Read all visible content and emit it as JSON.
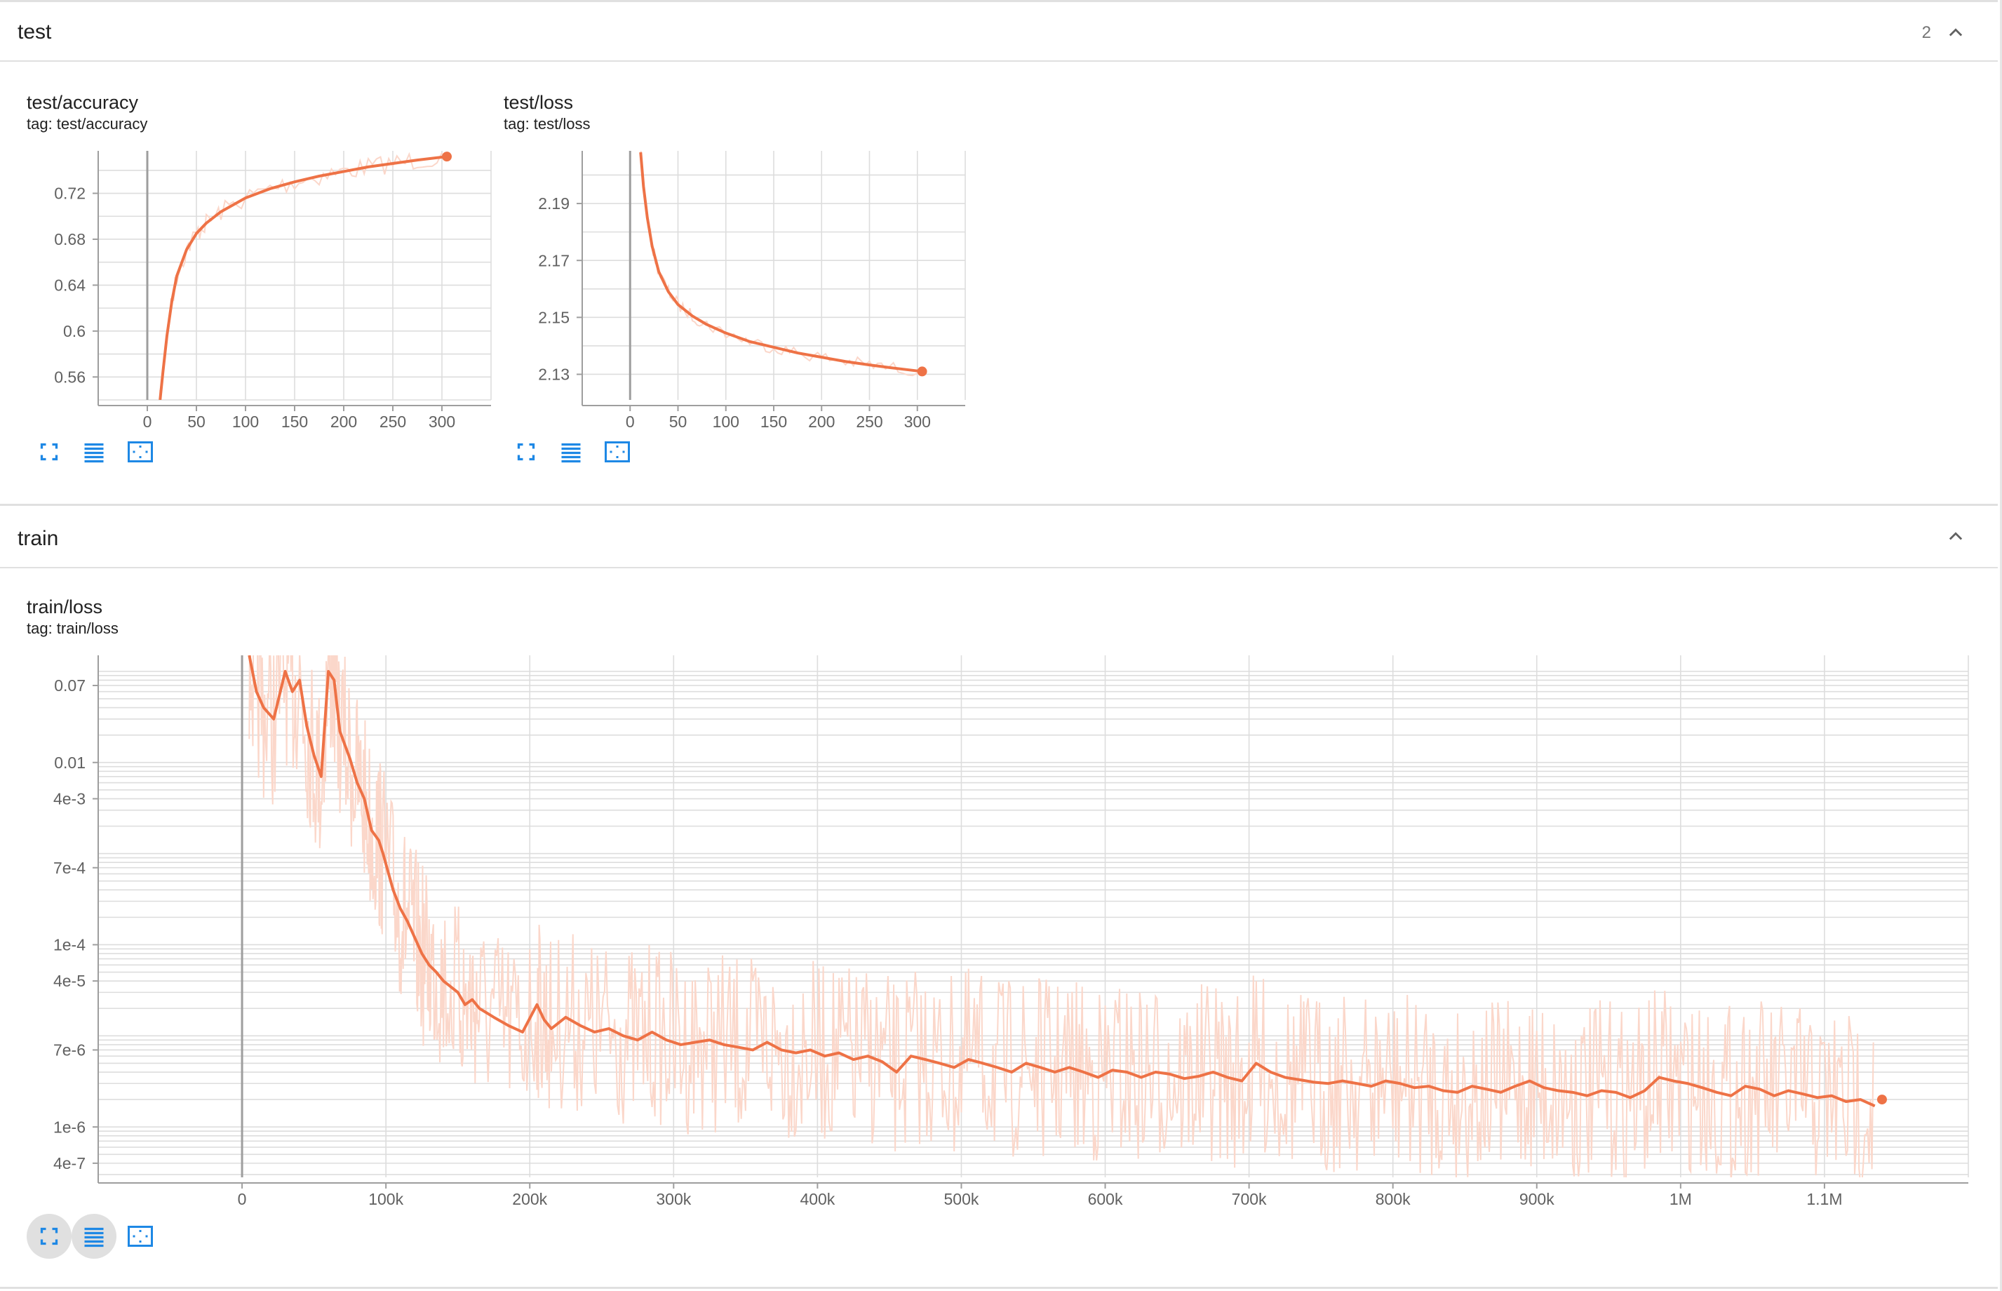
{
  "sections": {
    "test": {
      "title": "test",
      "count": "2"
    },
    "train": {
      "title": "train"
    }
  },
  "cards": {
    "acc": {
      "title": "test/accuracy",
      "tag": "tag: test/accuracy"
    },
    "loss": {
      "title": "test/loss",
      "tag": "tag: test/loss"
    },
    "train": {
      "title": "train/loss",
      "tag": "tag: train/loss"
    }
  },
  "icons": {
    "fit": "fullscreen-icon",
    "log": "toggle-log-scale-icon",
    "zoom": "fit-domain-icon",
    "collapse": "chevron-up-icon"
  },
  "colors": {
    "series": "#ee7246",
    "series_faint": "#fbd7ca",
    "accent": "#1e88e5"
  },
  "chart_data": [
    {
      "type": "line",
      "title": "test/accuracy",
      "xlim": [
        -50,
        350
      ],
      "ylim": [
        0.54,
        0.757
      ],
      "xticks": [
        0,
        50,
        100,
        150,
        200,
        250,
        300
      ],
      "yticks": [
        0.56,
        0.6,
        0.64,
        0.68,
        0.72
      ],
      "ytick_labels": [
        "0.56",
        "0.6",
        "0.64",
        "0.68",
        "0.72"
      ],
      "grid": true,
      "series": [
        {
          "x": [
            13,
            16,
            20,
            25,
            30,
            40,
            50,
            60,
            75,
            100,
            125,
            150,
            175,
            200,
            225,
            250,
            275,
            305
          ],
          "y": [
            0.54,
            0.565,
            0.596,
            0.626,
            0.648,
            0.671,
            0.685,
            0.694,
            0.704,
            0.716,
            0.724,
            0.73,
            0.735,
            0.739,
            0.743,
            0.746,
            0.749,
            0.752
          ]
        }
      ]
    },
    {
      "type": "line",
      "title": "test/loss",
      "xlim": [
        -50,
        350
      ],
      "ylim": [
        2.121,
        2.2085
      ],
      "xticks": [
        0,
        50,
        100,
        150,
        200,
        250,
        300
      ],
      "yticks": [
        2.13,
        2.15,
        2.17,
        2.19
      ],
      "ytick_labels": [
        "2.13",
        "2.15",
        "2.17",
        "2.19"
      ],
      "grid": true,
      "series": [
        {
          "x": [
            11,
            14,
            18,
            23,
            30,
            40,
            50,
            65,
            80,
            100,
            125,
            150,
            175,
            200,
            225,
            250,
            275,
            305
          ],
          "y": [
            2.208,
            2.196,
            2.185,
            2.175,
            2.166,
            2.159,
            2.1545,
            2.1505,
            2.1475,
            2.1445,
            2.1415,
            2.1395,
            2.1375,
            2.136,
            2.1345,
            2.1333,
            2.1322,
            2.131
          ]
        }
      ]
    },
    {
      "type": "line",
      "title": "train/loss",
      "xlim": [
        -100000,
        1200000
      ],
      "ylim": [
        2.8e-07,
        0.15
      ],
      "yscale": "log",
      "xticks": [
        0,
        100000,
        200000,
        300000,
        400000,
        500000,
        600000,
        700000,
        800000,
        900000,
        1000000,
        1100000
      ],
      "xtick_labels": [
        "0",
        "100k",
        "200k",
        "300k",
        "400k",
        "500k",
        "600k",
        "700k",
        "800k",
        "900k",
        "1M",
        "1.1M"
      ],
      "yticks": [
        4e-07,
        1e-06,
        7e-06,
        4e-05,
        0.0001,
        0.0007,
        0.004,
        0.01,
        0.07
      ],
      "ytick_labels": [
        "4e-7",
        "1e-6",
        "7e-6",
        "4e-5",
        "1e-4",
        "7e-4",
        "4e-3",
        "0.01",
        "0.07"
      ],
      "grid": true,
      "series": [
        {
          "x": [
            5000,
            10000,
            15000,
            22000,
            30000,
            35000,
            40000,
            45000,
            50000,
            55000,
            60000,
            64000,
            68000,
            75000,
            80000,
            85000,
            90000,
            95000,
            98000,
            105000,
            110000,
            115000,
            120000,
            125000,
            130000,
            135000,
            140000,
            150000,
            155000,
            160000,
            165000,
            175000,
            185000,
            195000,
            205000,
            210000,
            215000,
            225000,
            235000,
            245000,
            255000,
            265000,
            275000,
            285000,
            295000,
            305000,
            315000,
            325000,
            335000,
            345000,
            355000,
            365000,
            375000,
            385000,
            395000,
            405000,
            415000,
            425000,
            435000,
            445000,
            455000,
            465000,
            475000,
            485000,
            495000,
            505000,
            515000,
            525000,
            535000,
            545000,
            555000,
            565000,
            575000,
            585000,
            595000,
            605000,
            615000,
            625000,
            635000,
            645000,
            655000,
            665000,
            675000,
            685000,
            695000,
            705000,
            715000,
            725000,
            735000,
            745000,
            755000,
            765000,
            775000,
            785000,
            795000,
            805000,
            815000,
            825000,
            835000,
            845000,
            855000,
            865000,
            875000,
            885000,
            895000,
            905000,
            915000,
            925000,
            935000,
            945000,
            955000,
            965000,
            975000,
            985000,
            995000,
            1005000,
            1015000,
            1025000,
            1035000,
            1045000,
            1055000,
            1065000,
            1075000,
            1085000,
            1095000,
            1105000,
            1115000,
            1125000,
            1135000
          ],
          "y": [
            0.15,
            0.06,
            0.04,
            0.03,
            0.1,
            0.06,
            0.08,
            0.025,
            0.012,
            0.007,
            0.1,
            0.08,
            0.022,
            0.011,
            0.006,
            0.004,
            0.0018,
            0.0014,
            0.001,
            0.0004,
            0.00025,
            0.00018,
            0.00012,
            8e-05,
            6e-05,
            5e-05,
            4e-05,
            3e-05,
            2.2e-05,
            2.5e-05,
            2e-05,
            1.6e-05,
            1.3e-05,
            1.1e-05,
            2.2e-05,
            1.5e-05,
            1.2e-05,
            1.6e-05,
            1.3e-05,
            1.1e-05,
            1.2e-05,
            1e-05,
            9e-06,
            1.1e-05,
            9e-06,
            8e-06,
            8.5e-06,
            9e-06,
            8e-06,
            7.5e-06,
            7e-06,
            8.5e-06,
            7e-06,
            6.5e-06,
            7e-06,
            6e-06,
            6.5e-06,
            5.5e-06,
            6e-06,
            5.2e-06,
            4e-06,
            6e-06,
            5.5e-06,
            5e-06,
            4.5e-06,
            5.5e-06,
            5e-06,
            4.5e-06,
            4e-06,
            5e-06,
            4.5e-06,
            4e-06,
            4.5e-06,
            4e-06,
            3.5e-06,
            4.2e-06,
            4e-06,
            3.5e-06,
            4e-06,
            3.8e-06,
            3.4e-06,
            3.6e-06,
            4e-06,
            3.5e-06,
            3.2e-06,
            5e-06,
            4e-06,
            3.5e-06,
            3.3e-06,
            3.1e-06,
            3e-06,
            3.2e-06,
            3e-06,
            2.8e-06,
            3.2e-06,
            3e-06,
            2.7e-06,
            2.8e-06,
            2.5e-06,
            2.4e-06,
            2.8e-06,
            2.6e-06,
            2.4e-06,
            2.8e-06,
            3.2e-06,
            2.7e-06,
            2.5e-06,
            2.4e-06,
            2.2e-06,
            2.5e-06,
            2.4e-06,
            2.1e-06,
            2.5e-06,
            3.5e-06,
            3.2e-06,
            3e-06,
            2.7e-06,
            2.4e-06,
            2.2e-06,
            2.8e-06,
            2.6e-06,
            2.2e-06,
            2.5e-06,
            2.3e-06,
            2.1e-06,
            2.2e-06,
            1.9e-06,
            2e-06,
            1.7e-06
          ]
        }
      ],
      "last_point": {
        "x": 1140000,
        "y": 2e-06
      }
    }
  ]
}
